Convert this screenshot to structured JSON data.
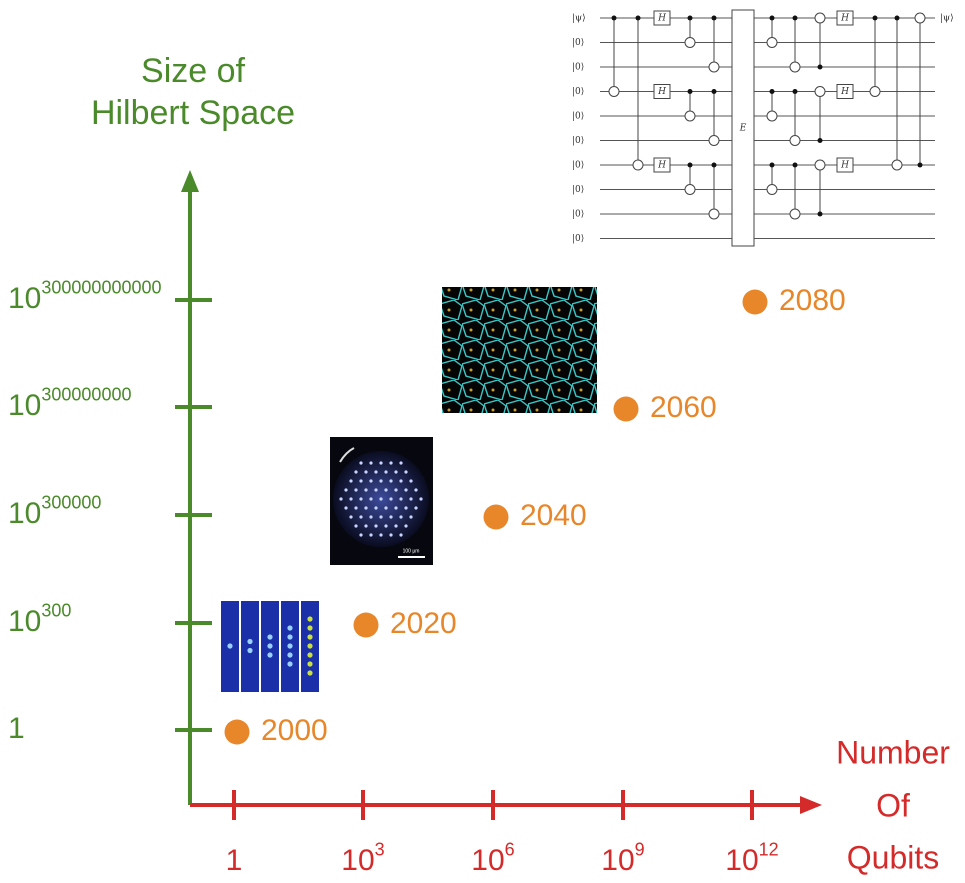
{
  "y_axis": {
    "title": [
      "Size of",
      "Hilbert Space"
    ],
    "ticks": [
      {
        "base": "1",
        "exponent": ""
      },
      {
        "base": "10",
        "exponent": "300"
      },
      {
        "base": "10",
        "exponent": "300000"
      },
      {
        "base": "10",
        "exponent": "300000000"
      },
      {
        "base": "10",
        "exponent": "300000000000"
      }
    ]
  },
  "x_axis": {
    "title": [
      "Number",
      "Of",
      "Qubits"
    ],
    "ticks": [
      {
        "base": "1",
        "exponent": ""
      },
      {
        "base": "10",
        "exponent": "3"
      },
      {
        "base": "10",
        "exponent": "6"
      },
      {
        "base": "10",
        "exponent": "9"
      },
      {
        "base": "10",
        "exponent": "12"
      }
    ]
  },
  "points": [
    "2000",
    "2020",
    "2040",
    "2060",
    "2080"
  ],
  "circuit": {
    "inputs": [
      "|ψ⟩",
      "|0⟩",
      "|0⟩",
      "|0⟩",
      "|0⟩",
      "|0⟩",
      "|0⟩",
      "|0⟩",
      "|0⟩",
      "|0⟩"
    ],
    "output": "|ψ⟩",
    "hadamard": "H",
    "block": "E"
  },
  "trap_scale": "100 µm"
}
